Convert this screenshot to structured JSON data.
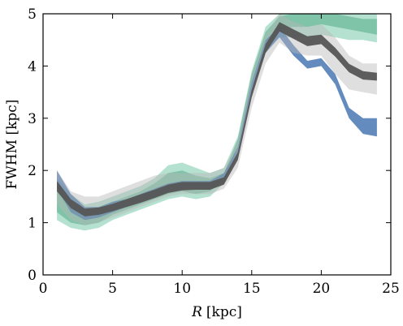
{
  "chart_data": {
    "type": "area",
    "xlabel_symbol": "R",
    "xlabel_unit": "[kpc]",
    "ylabel": "FWHM [kpc]",
    "xlim": [
      0,
      25
    ],
    "ylim": [
      0,
      5
    ],
    "xticks": [
      0,
      5,
      10,
      15,
      20,
      25
    ],
    "yticks": [
      0,
      1,
      2,
      3,
      4,
      5
    ],
    "grid": false,
    "series": [
      {
        "role": "green-outer-band",
        "color": "#2ca87a",
        "x": [
          1,
          2,
          3,
          4,
          5,
          6,
          7,
          8,
          9,
          10,
          11,
          12,
          13,
          14,
          15,
          16,
          17,
          18,
          19,
          20,
          21,
          22,
          23,
          24
        ],
        "lower": [
          1.05,
          0.9,
          0.85,
          0.9,
          1.05,
          1.15,
          1.25,
          1.35,
          1.45,
          1.5,
          1.45,
          1.5,
          1.75,
          2.4,
          3.6,
          4.3,
          4.55,
          4.55,
          4.55,
          4.6,
          4.55,
          4.5,
          4.5,
          4.45
        ],
        "upper": [
          1.85,
          1.55,
          1.35,
          1.4,
          1.5,
          1.6,
          1.7,
          1.85,
          2.1,
          2.15,
          2.05,
          1.95,
          2.05,
          2.65,
          3.9,
          4.75,
          5.0,
          5.0,
          5.0,
          5.0,
          5.0,
          5.0,
          5.0,
          5.0
        ]
      },
      {
        "role": "green-inner-band",
        "color": "#3e9f76",
        "x": [
          1,
          2,
          3,
          4,
          5,
          6,
          7,
          8,
          9,
          10,
          11,
          12,
          13,
          14,
          15,
          16,
          17,
          18,
          19,
          20,
          21,
          22,
          23,
          24
        ],
        "lower": [
          1.2,
          1.0,
          0.95,
          1.0,
          1.15,
          1.25,
          1.35,
          1.45,
          1.55,
          1.6,
          1.55,
          1.6,
          1.8,
          2.45,
          3.7,
          4.45,
          4.7,
          4.75,
          4.75,
          4.8,
          4.75,
          4.7,
          4.65,
          4.6
        ],
        "upper": [
          1.7,
          1.45,
          1.25,
          1.3,
          1.4,
          1.5,
          1.6,
          1.75,
          1.95,
          2.0,
          1.9,
          1.85,
          1.95,
          2.6,
          3.85,
          4.65,
          4.95,
          5.0,
          5.0,
          5.0,
          5.0,
          4.95,
          4.9,
          4.9
        ]
      },
      {
        "role": "blue-band",
        "color": "#2f64a8",
        "x": [
          1,
          2,
          3,
          4,
          5,
          6,
          7,
          8,
          9,
          10,
          11,
          12,
          13,
          14,
          15,
          16,
          17,
          18,
          19,
          20,
          21,
          22,
          23,
          24
        ],
        "lower": [
          1.65,
          1.2,
          1.05,
          1.1,
          1.2,
          1.3,
          1.4,
          1.5,
          1.6,
          1.65,
          1.65,
          1.65,
          1.8,
          2.3,
          3.5,
          4.25,
          4.55,
          4.2,
          3.95,
          4.0,
          3.65,
          3.0,
          2.7,
          2.65
        ],
        "upper": [
          2.0,
          1.55,
          1.3,
          1.3,
          1.4,
          1.45,
          1.55,
          1.65,
          1.75,
          1.8,
          1.8,
          1.8,
          1.95,
          2.45,
          3.7,
          4.5,
          4.75,
          4.4,
          4.1,
          4.15,
          3.85,
          3.2,
          3.0,
          3.0
        ]
      },
      {
        "role": "grey-light-band",
        "color": "#b8b8b8",
        "x": [
          1,
          2,
          3,
          4,
          5,
          6,
          7,
          8,
          9,
          10,
          11,
          12,
          13,
          14,
          15,
          16,
          17,
          18,
          19,
          20,
          21,
          22,
          23,
          24
        ],
        "lower": [
          1.35,
          1.05,
          0.95,
          1.0,
          1.1,
          1.2,
          1.3,
          1.4,
          1.5,
          1.55,
          1.55,
          1.55,
          1.65,
          2.05,
          3.2,
          4.05,
          4.45,
          4.25,
          4.2,
          4.2,
          3.85,
          3.55,
          3.5,
          3.45
        ],
        "upper": [
          2.0,
          1.6,
          1.5,
          1.5,
          1.6,
          1.7,
          1.8,
          1.9,
          1.95,
          1.95,
          1.95,
          1.95,
          2.05,
          2.55,
          3.8,
          4.6,
          5.0,
          4.85,
          4.75,
          4.8,
          4.55,
          4.2,
          4.05,
          4.05
        ]
      },
      {
        "role": "grey-median-band",
        "color": "#555555",
        "x": [
          1,
          2,
          3,
          4,
          5,
          6,
          7,
          8,
          9,
          10,
          11,
          12,
          13,
          14,
          15,
          16,
          17,
          18,
          19,
          20,
          21,
          22,
          23,
          24
        ],
        "lower": [
          1.6,
          1.28,
          1.12,
          1.15,
          1.22,
          1.3,
          1.38,
          1.47,
          1.57,
          1.62,
          1.63,
          1.63,
          1.73,
          2.2,
          3.4,
          4.25,
          4.66,
          4.52,
          4.38,
          4.42,
          4.18,
          3.88,
          3.74,
          3.72
        ],
        "upper": [
          1.8,
          1.45,
          1.27,
          1.29,
          1.36,
          1.45,
          1.54,
          1.63,
          1.73,
          1.78,
          1.78,
          1.78,
          1.87,
          2.35,
          3.55,
          4.42,
          4.84,
          4.7,
          4.57,
          4.6,
          4.35,
          4.04,
          3.9,
          3.87
        ]
      }
    ]
  }
}
